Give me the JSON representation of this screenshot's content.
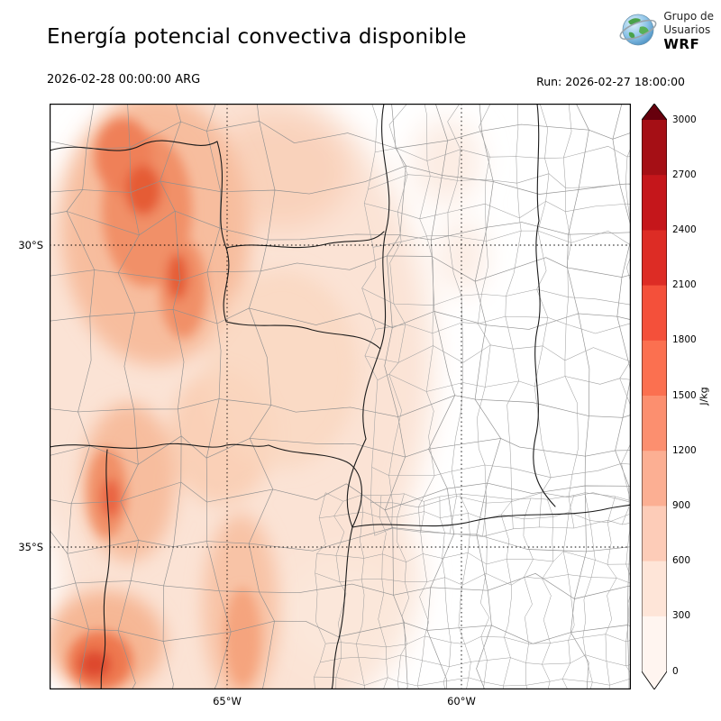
{
  "header": {
    "title": "Energía potencial convectiva disponible",
    "valid_time": "2026-02-28 00:00:00 ARG",
    "run_label": "Run: 2026-02-27 18:00:00",
    "logo": {
      "line1": "Grupo de",
      "line2": "Usuarios",
      "line3": "WRF"
    }
  },
  "map": {
    "lat_ticks": [
      {
        "label": "30°S"
      },
      {
        "label": "35°S"
      }
    ],
    "lon_ticks": [
      {
        "label": "65°W"
      },
      {
        "label": "60°W"
      }
    ]
  },
  "colorbar": {
    "unit_label": "J/kg",
    "ticks": [
      "3000",
      "2700",
      "2400",
      "2100",
      "1800",
      "1500",
      "1200",
      "900",
      "600",
      "300",
      "0"
    ],
    "segment_colors_bottom_to_top": [
      "#fff5f0",
      "#fee5d8",
      "#fdccb8",
      "#fcaf93",
      "#fc8f6f",
      "#fb7050",
      "#f4503a",
      "#dd2c25",
      "#c5161b",
      "#a50f15"
    ],
    "over_arrow_color": "#67000d",
    "under_arrow_color": "#fff5f0"
  },
  "map_data": {
    "type": "filled-contour-map",
    "variable": "Energía potencial convectiva disponible (CAPE)",
    "unit": "J/kg",
    "contour_levels": [
      0,
      300,
      600,
      900,
      1200,
      1500,
      1800,
      2100,
      2400,
      2700,
      3000
    ],
    "gridline_latitudes": [
      "30°S",
      "35°S"
    ],
    "gridline_longitudes": [
      "65°W",
      "60°W"
    ],
    "shading_summary": "Valores de 300–1500 J/kg sobre el oeste y noroeste del dominio, con máximos locales en el noroeste y suroeste; el este del dominio permanece cercano a 0."
  }
}
